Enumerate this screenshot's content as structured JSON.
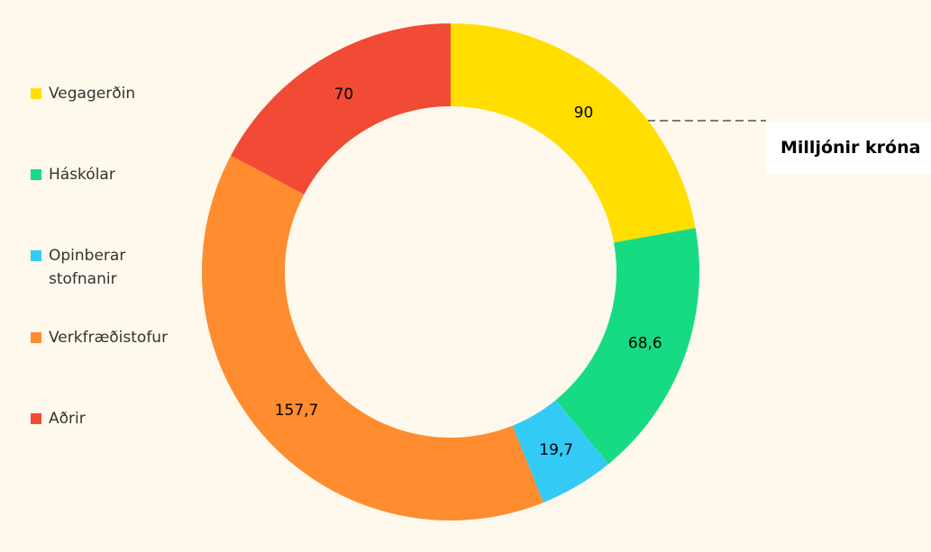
{
  "chart_data": {
    "type": "donut",
    "categories": [
      "Vegagerðin",
      "Háskólar",
      "Opinberar stofnanir",
      "Verkfræðistofur",
      "Aðrir"
    ],
    "values": [
      90,
      68.6,
      19.7,
      157.7,
      70
    ],
    "value_labels": [
      "90",
      "68,6",
      "19,7",
      "157,7",
      "70"
    ],
    "colors": [
      "#ffde00",
      "#17db83",
      "#33cbf6",
      "#ff8c2f",
      "#f14a35"
    ],
    "annotation": "Milljónir króna",
    "legend": "left"
  }
}
